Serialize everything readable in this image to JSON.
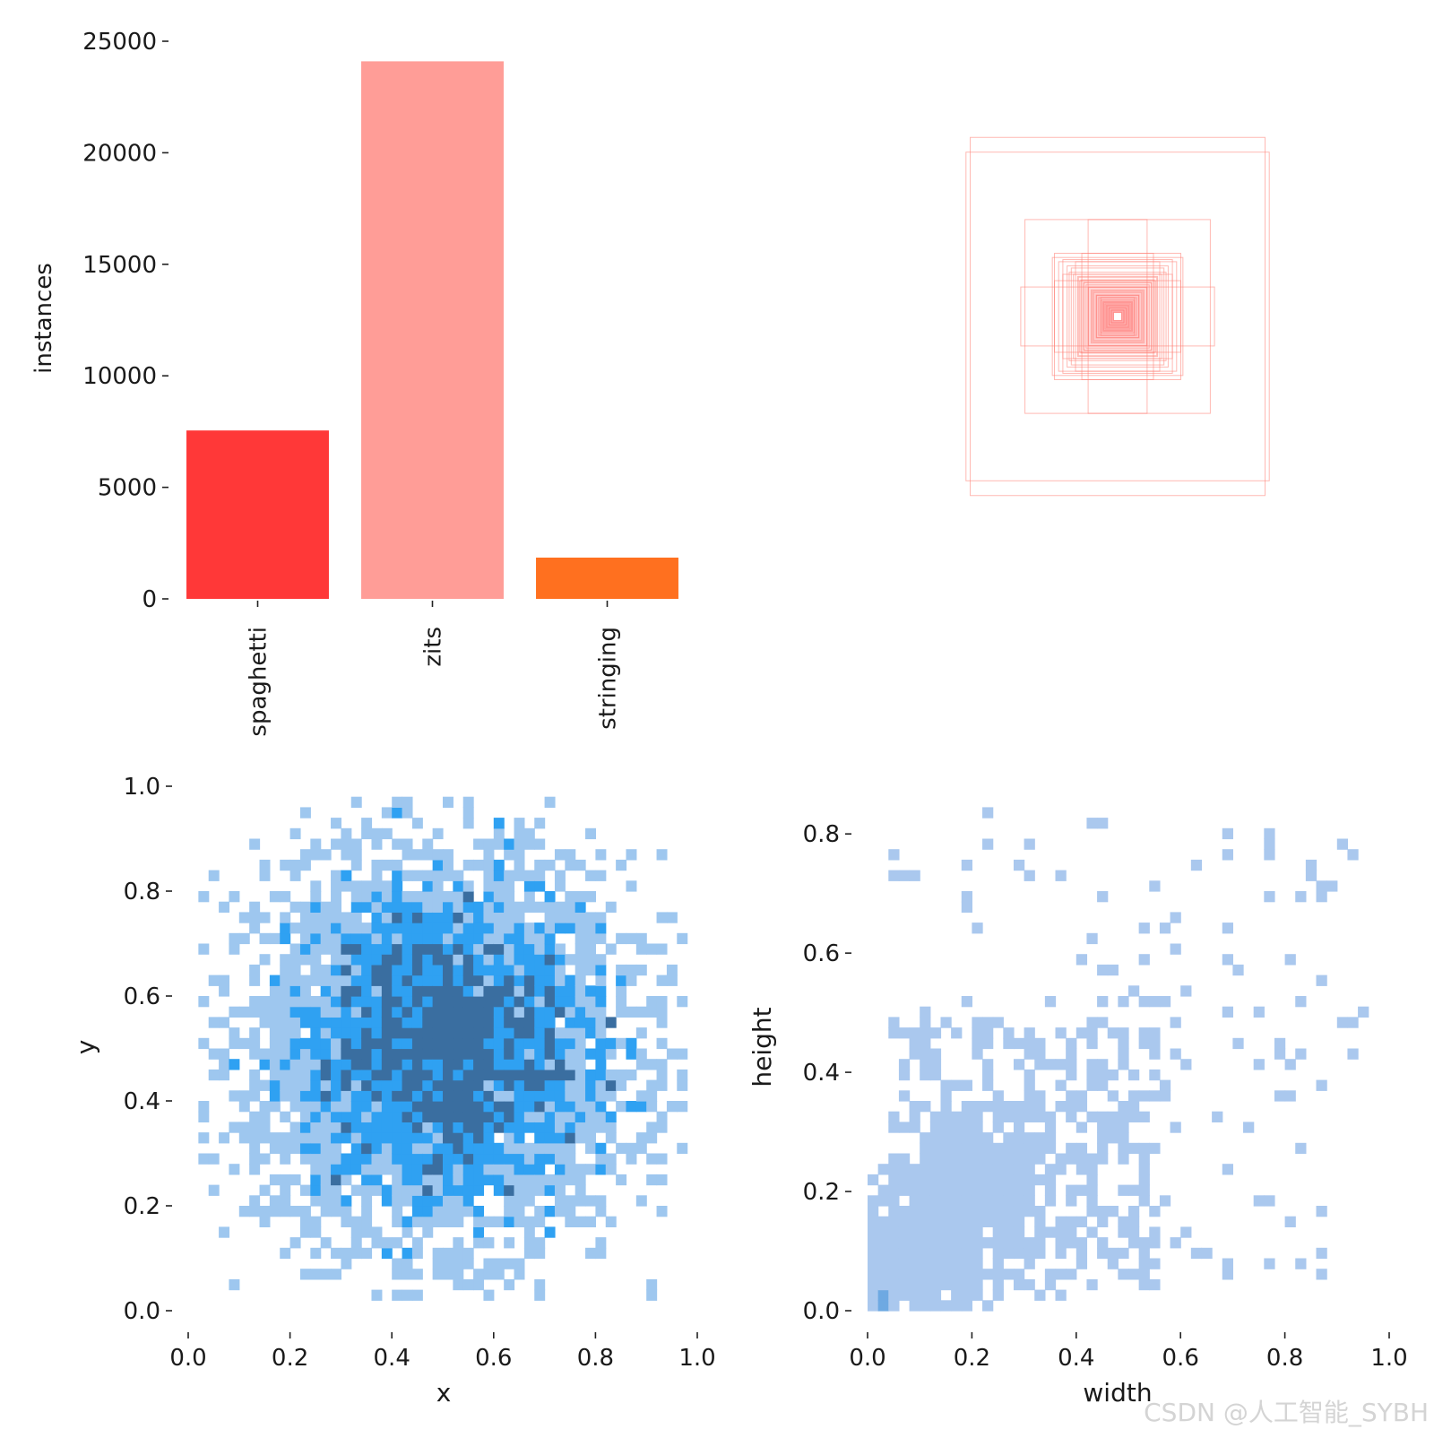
{
  "chart_data": [
    {
      "type": "bar",
      "ylabel": "instances",
      "categories": [
        "spaghetti",
        "zits",
        "stringing"
      ],
      "values": [
        7550,
        24100,
        1850
      ],
      "colors": [
        "#ff3838",
        "#ff9d97",
        "#ff701f"
      ],
      "ylim": [
        0,
        25000
      ],
      "yticks": [
        0,
        5000,
        10000,
        15000,
        20000,
        25000
      ],
      "ytick_labels": [
        "0",
        "5000",
        "10000",
        "15000",
        "20000",
        "25000"
      ]
    },
    {
      "type": "box_overlay",
      "description_color": "#ff7f74",
      "boxes_wh": [
        [
          0.7,
          0.85
        ],
        [
          0.72,
          0.78
        ],
        [
          0.44,
          0.46
        ],
        [
          0.46,
          0.14
        ],
        [
          0.14,
          0.46
        ],
        [
          0.3,
          0.3
        ],
        [
          0.31,
          0.28
        ],
        [
          0.28,
          0.26
        ],
        [
          0.26,
          0.27
        ],
        [
          0.24,
          0.24
        ],
        [
          0.22,
          0.23
        ],
        [
          0.23,
          0.21
        ],
        [
          0.21,
          0.2
        ],
        [
          0.19,
          0.19
        ],
        [
          0.18,
          0.17
        ],
        [
          0.16,
          0.16
        ],
        [
          0.14,
          0.14
        ],
        [
          0.12,
          0.12
        ],
        [
          0.1,
          0.1
        ],
        [
          0.08,
          0.09
        ],
        [
          0.07,
          0.07
        ],
        [
          0.06,
          0.06
        ],
        [
          0.05,
          0.05
        ],
        [
          0.04,
          0.04
        ],
        [
          0.03,
          0.03
        ],
        [
          0.02,
          0.02
        ],
        [
          0.2,
          0.26
        ],
        [
          0.26,
          0.2
        ],
        [
          0.17,
          0.3
        ],
        [
          0.3,
          0.17
        ]
      ]
    },
    {
      "type": "heatmap",
      "xlabel": "x",
      "ylabel": "y",
      "xlim": [
        0,
        1
      ],
      "ylim": [
        0,
        1
      ],
      "xticks": [
        0.0,
        0.2,
        0.4,
        0.6,
        0.8,
        1.0
      ],
      "xtick_labels": [
        "0.0",
        "0.2",
        "0.4",
        "0.6",
        "0.8",
        "1.0"
      ],
      "yticks": [
        0.0,
        0.2,
        0.4,
        0.6,
        0.8,
        1.0
      ],
      "ytick_labels": [
        "0.0",
        "0.2",
        "0.4",
        "0.6",
        "0.8",
        "1.0"
      ],
      "bins": 50,
      "data_range": [
        0.02,
        0.98
      ],
      "distribution": "approximately normal, centered at (0.50, 0.50), sd about 0.18",
      "colors": [
        "#9ec7ef",
        "#2fa1f2",
        "#3a6ea0"
      ]
    },
    {
      "type": "heatmap",
      "xlabel": "width",
      "ylabel": "height",
      "xlim": [
        0,
        1
      ],
      "ylim": [
        0,
        0.88
      ],
      "xticks": [
        0.0,
        0.2,
        0.4,
        0.6,
        0.8,
        1.0
      ],
      "xtick_labels": [
        "0.0",
        "0.2",
        "0.4",
        "0.6",
        "0.8",
        "1.0"
      ],
      "yticks": [
        0.0,
        0.2,
        0.4,
        0.6,
        0.8
      ],
      "ytick_labels": [
        "0.0",
        "0.2",
        "0.4",
        "0.6",
        "0.8"
      ],
      "bins": 50,
      "distribution": "dense near (0.15, 0.15) with a peak at (0.02, 0.02), sparse up to width 0.95 and height 0.88",
      "colors": [
        "#aac8ee",
        "#6ea9e2",
        "#2f6aa8"
      ]
    }
  ],
  "watermark": "CSDN @人工智能_SYBH"
}
